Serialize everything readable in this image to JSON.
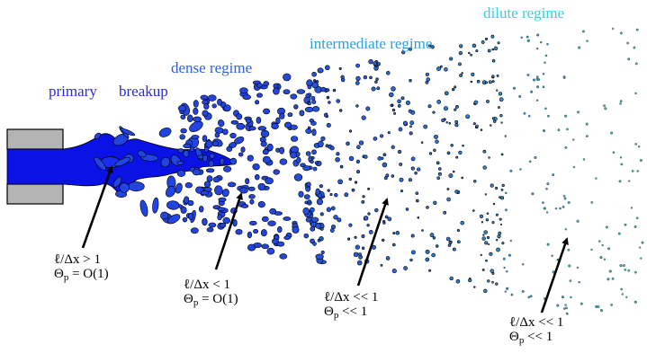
{
  "regimes": {
    "primary": "primary",
    "breakup": "breakup",
    "dense": "dense regime",
    "intermediate": "intermediate regime",
    "dilute": "dilute regime"
  },
  "annotations": [
    {
      "line1": "ℓ/Δx > 1",
      "theta": "Θ",
      "sub": "p",
      "rel": " = O(1)"
    },
    {
      "line1": "ℓ/Δx < 1",
      "theta": "Θ",
      "sub": "p",
      "rel": " = O(1)"
    },
    {
      "line1": "ℓ/Δx << 1",
      "theta": "Θ",
      "sub": "p",
      "rel": " << 1"
    },
    {
      "line1": "ℓ/Δx << 1",
      "theta": "Θ",
      "sub": "p",
      "rel": " << 1"
    }
  ],
  "colors": {
    "nozzle": "#b4b4b4",
    "liquid_core": "#0a12e6",
    "dense_droplets": "#2244e0",
    "intermediate_droplets": "#2f7fd0",
    "dilute_droplets": "#3fb3b3",
    "arrows": "#000000"
  }
}
